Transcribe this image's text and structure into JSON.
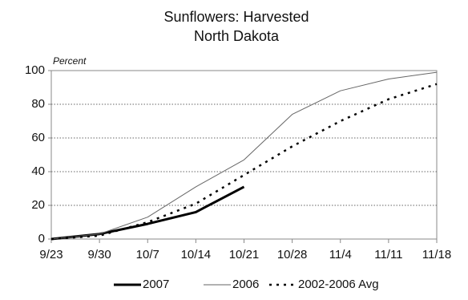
{
  "chart_data": {
    "type": "line",
    "title": "Sunflowers:  Harvested",
    "subtitle": "North Dakota",
    "y_label": "Percent",
    "categories": [
      "9/23",
      "9/30",
      "10/7",
      "10/14",
      "10/21",
      "10/28",
      "11/4",
      "11/11",
      "11/18"
    ],
    "series": [
      {
        "name": "2007",
        "color": "#000000",
        "width": 3,
        "style": "solid",
        "values": [
          0,
          3,
          9,
          16,
          31,
          null,
          null,
          null,
          null
        ]
      },
      {
        "name": "2006",
        "color": "#666666",
        "width": 1,
        "style": "solid",
        "values": [
          0,
          3,
          13,
          31,
          47,
          74,
          88,
          95,
          99
        ]
      },
      {
        "name": "2002-2006 Avg",
        "color": "#000000",
        "width": 2.5,
        "style": "dotted",
        "values": [
          0,
          2,
          10,
          21,
          38,
          55,
          70,
          83,
          92
        ]
      }
    ],
    "ylim": [
      0,
      100
    ],
    "yticks": [
      0,
      20,
      40,
      60,
      80,
      100
    ],
    "grid": true
  }
}
